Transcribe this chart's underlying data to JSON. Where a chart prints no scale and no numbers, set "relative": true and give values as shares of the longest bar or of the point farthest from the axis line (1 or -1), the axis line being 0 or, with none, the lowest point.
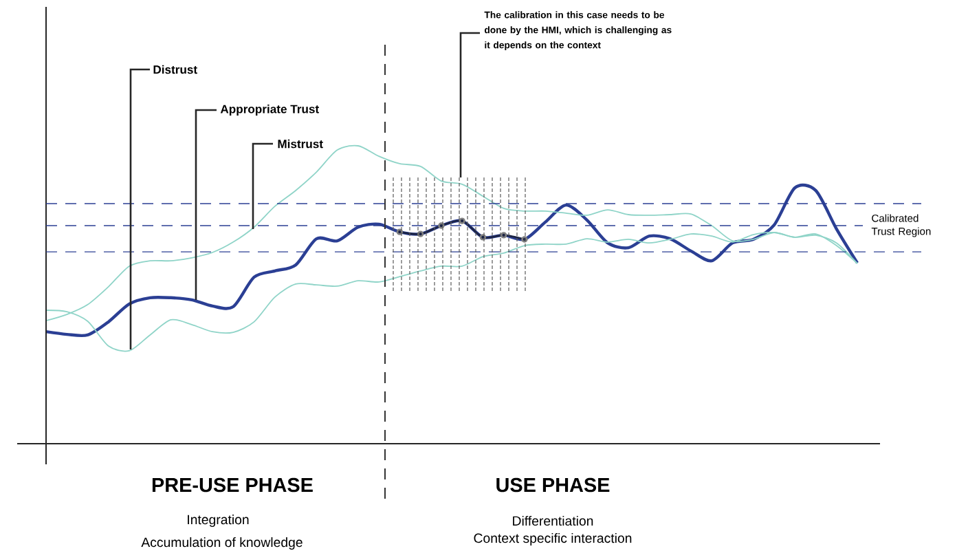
{
  "chart_data": {
    "type": "line",
    "relative": true,
    "categories": [
      null,
      null,
      null,
      null,
      null,
      null,
      null,
      null,
      null,
      null,
      null,
      null,
      null,
      null,
      null,
      null,
      null,
      null,
      null,
      null,
      null,
      null,
      null,
      null,
      null,
      null,
      null,
      null,
      null,
      null,
      null,
      null,
      null,
      null,
      null,
      null,
      null,
      null,
      null,
      null
    ],
    "series": [
      {
        "color": "#2b3f94",
        "values": [
          0.376,
          0.367,
          0.365,
          0.409,
          0.469,
          0.49,
          0.49,
          0.483,
          0.462,
          0.46,
          0.559,
          0.58,
          0.6,
          0.688,
          0.681,
          0.727,
          0.737,
          0.711,
          0.704,
          0.732,
          0.748,
          0.693,
          0.7,
          0.686,
          0.744,
          0.801,
          0.751,
          0.674,
          0.658,
          0.697,
          0.688,
          0.647,
          0.614,
          0.674,
          0.686,
          0.734,
          0.859,
          0.85,
          0.721,
          0.607
        ]
      },
      {
        "color": "#8fd4c8",
        "values": [
          0.413,
          0.434,
          0.467,
          0.527,
          0.596,
          0.614,
          0.614,
          0.624,
          0.642,
          0.677,
          0.727,
          0.797,
          0.85,
          0.912,
          0.986,
          1,
          0.965,
          0.94,
          0.931,
          0.882,
          0.871,
          0.831,
          0.79,
          0.781,
          0.781,
          0.774,
          0.767,
          0.785,
          0.769,
          0.767,
          0.769,
          0.771,
          0.732,
          0.681,
          0.686,
          0.709,
          0.693,
          0.704,
          0.665,
          0.605
        ]
      },
      {
        "color": "#8fd4c8",
        "values": [
          0.448,
          0.443,
          0.411,
          0.328,
          0.312,
          0.365,
          0.416,
          0.4,
          0.376,
          0.374,
          0.409,
          0.492,
          0.536,
          0.533,
          0.529,
          0.547,
          0.543,
          0.561,
          0.58,
          0.596,
          0.596,
          0.628,
          0.64,
          0.665,
          0.67,
          0.67,
          0.688,
          0.677,
          0.686,
          0.674,
          0.686,
          0.704,
          0.697,
          0.677,
          0.702,
          0.709,
          0.693,
          0.7,
          0.674,
          0.605
        ]
      },
      {
        "color": "#1c2444",
        "marker": "circle",
        "values": [
          null,
          null,
          null,
          null,
          null,
          null,
          null,
          null,
          null,
          null,
          null,
          null,
          null,
          null,
          null,
          null,
          null,
          0.711,
          0.704,
          0.732,
          0.748,
          0.693,
          0.7,
          0.686,
          null,
          null,
          null,
          null,
          null,
          null,
          null,
          null,
          null,
          null,
          null,
          null,
          null,
          null,
          null,
          null
        ]
      }
    ],
    "ref_lines": [
      {
        "axis": "y",
        "value": 0.806,
        "color": "#2b3f94",
        "line_style": "dashed"
      },
      {
        "axis": "y",
        "value": 0.732,
        "label": "Calibrated Trust Region",
        "color": "#2b3f94",
        "line_style": "dashed"
      },
      {
        "axis": "y",
        "value": 0.644,
        "color": "#2b3f94",
        "line_style": "dashed"
      }
    ],
    "annotations": [
      "Distrust",
      "Appropriate Trust",
      "Mistrust",
      "The calibration in this case needs to be done by the HMI, which is challenging as it depends on the context",
      "PRE-USE PHASE",
      "Integration",
      "Accumulation of knowledge",
      "USE PHASE",
      "Differentiation",
      "Context specific interaction"
    ]
  }
}
